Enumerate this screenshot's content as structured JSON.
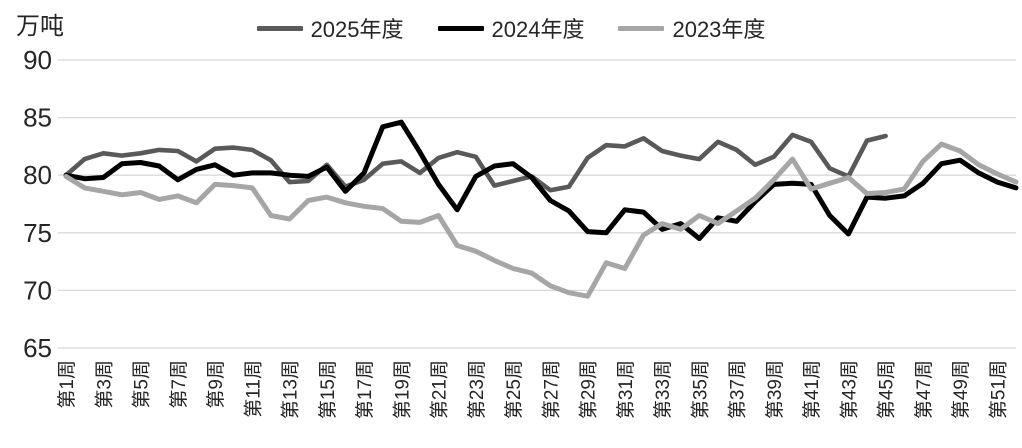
{
  "chart": {
    "unit_label": "万吨",
    "background": "#ffffff",
    "grid_color": "#d9d9d9",
    "text_color": "#262626"
  },
  "chart_data": {
    "type": "line",
    "title": "",
    "ylabel": "万吨",
    "xlabel": "",
    "ylim": [
      65,
      90
    ],
    "yticks": [
      90,
      85,
      80,
      75,
      70,
      65
    ],
    "grid": "horizontal",
    "legend_position": "top-center",
    "x_tick_labels": [
      "第1周",
      "第3周",
      "第5周",
      "第7周",
      "第9周",
      "第11周",
      "第13周",
      "第15周",
      "第17周",
      "第19周",
      "第21周",
      "第23周",
      "第25周",
      "第27周",
      "第29周",
      "第31周",
      "第33周",
      "第35周",
      "第37周",
      "第39周",
      "第41周",
      "第43周",
      "第45周",
      "第47周",
      "第49周",
      "第51周"
    ],
    "x_total_weeks": 52,
    "series": [
      {
        "name": "2025年度",
        "color": "#595959",
        "start_week": 1,
        "values": [
          80.0,
          81.4,
          81.9,
          81.7,
          81.9,
          82.2,
          82.1,
          81.2,
          82.3,
          82.4,
          82.2,
          81.3,
          79.4,
          79.5,
          80.9,
          79.0,
          79.6,
          81.0,
          81.2,
          80.2,
          81.5,
          82.0,
          81.6,
          79.1,
          79.5,
          79.9,
          78.7,
          79.0,
          81.5,
          82.6,
          82.5,
          83.2,
          82.1,
          81.7,
          81.4,
          82.9,
          82.2,
          80.9,
          81.6,
          83.5,
          82.9,
          80.6,
          79.9,
          83.0,
          83.4
        ]
      },
      {
        "name": "2024年度",
        "color": "#000000",
        "start_week": 1,
        "values": [
          80.0,
          79.7,
          79.8,
          81.0,
          81.1,
          80.8,
          79.6,
          80.5,
          80.9,
          80.0,
          80.2,
          80.2,
          80.0,
          79.9,
          80.7,
          78.6,
          80.2,
          84.2,
          84.6,
          82.0,
          79.2,
          77.0,
          79.9,
          80.8,
          81.0,
          79.8,
          77.8,
          76.9,
          75.1,
          75.0,
          77.0,
          76.8,
          75.3,
          75.8,
          74.5,
          76.3,
          76.0,
          77.7,
          79.2,
          79.3,
          79.2,
          76.5,
          74.9,
          78.1,
          78.0,
          78.2,
          79.3,
          81.0,
          81.3,
          80.2,
          79.4,
          78.9
        ]
      },
      {
        "name": "2023年度",
        "color": "#a6a6a6",
        "start_week": 1,
        "values": [
          79.9,
          78.9,
          78.6,
          78.3,
          78.5,
          77.9,
          78.2,
          77.6,
          79.2,
          79.1,
          78.9,
          76.5,
          76.2,
          77.8,
          78.1,
          77.6,
          77.3,
          77.1,
          76.0,
          75.9,
          76.5,
          73.9,
          73.4,
          72.6,
          71.9,
          71.5,
          70.4,
          69.8,
          69.5,
          72.4,
          71.9,
          74.8,
          75.8,
          75.3,
          76.5,
          75.8,
          76.9,
          78.0,
          79.6,
          81.4,
          78.8,
          79.3,
          79.8,
          78.4,
          78.5,
          78.8,
          81.2,
          82.7,
          82.1,
          80.9,
          80.1,
          79.4
        ]
      }
    ]
  }
}
